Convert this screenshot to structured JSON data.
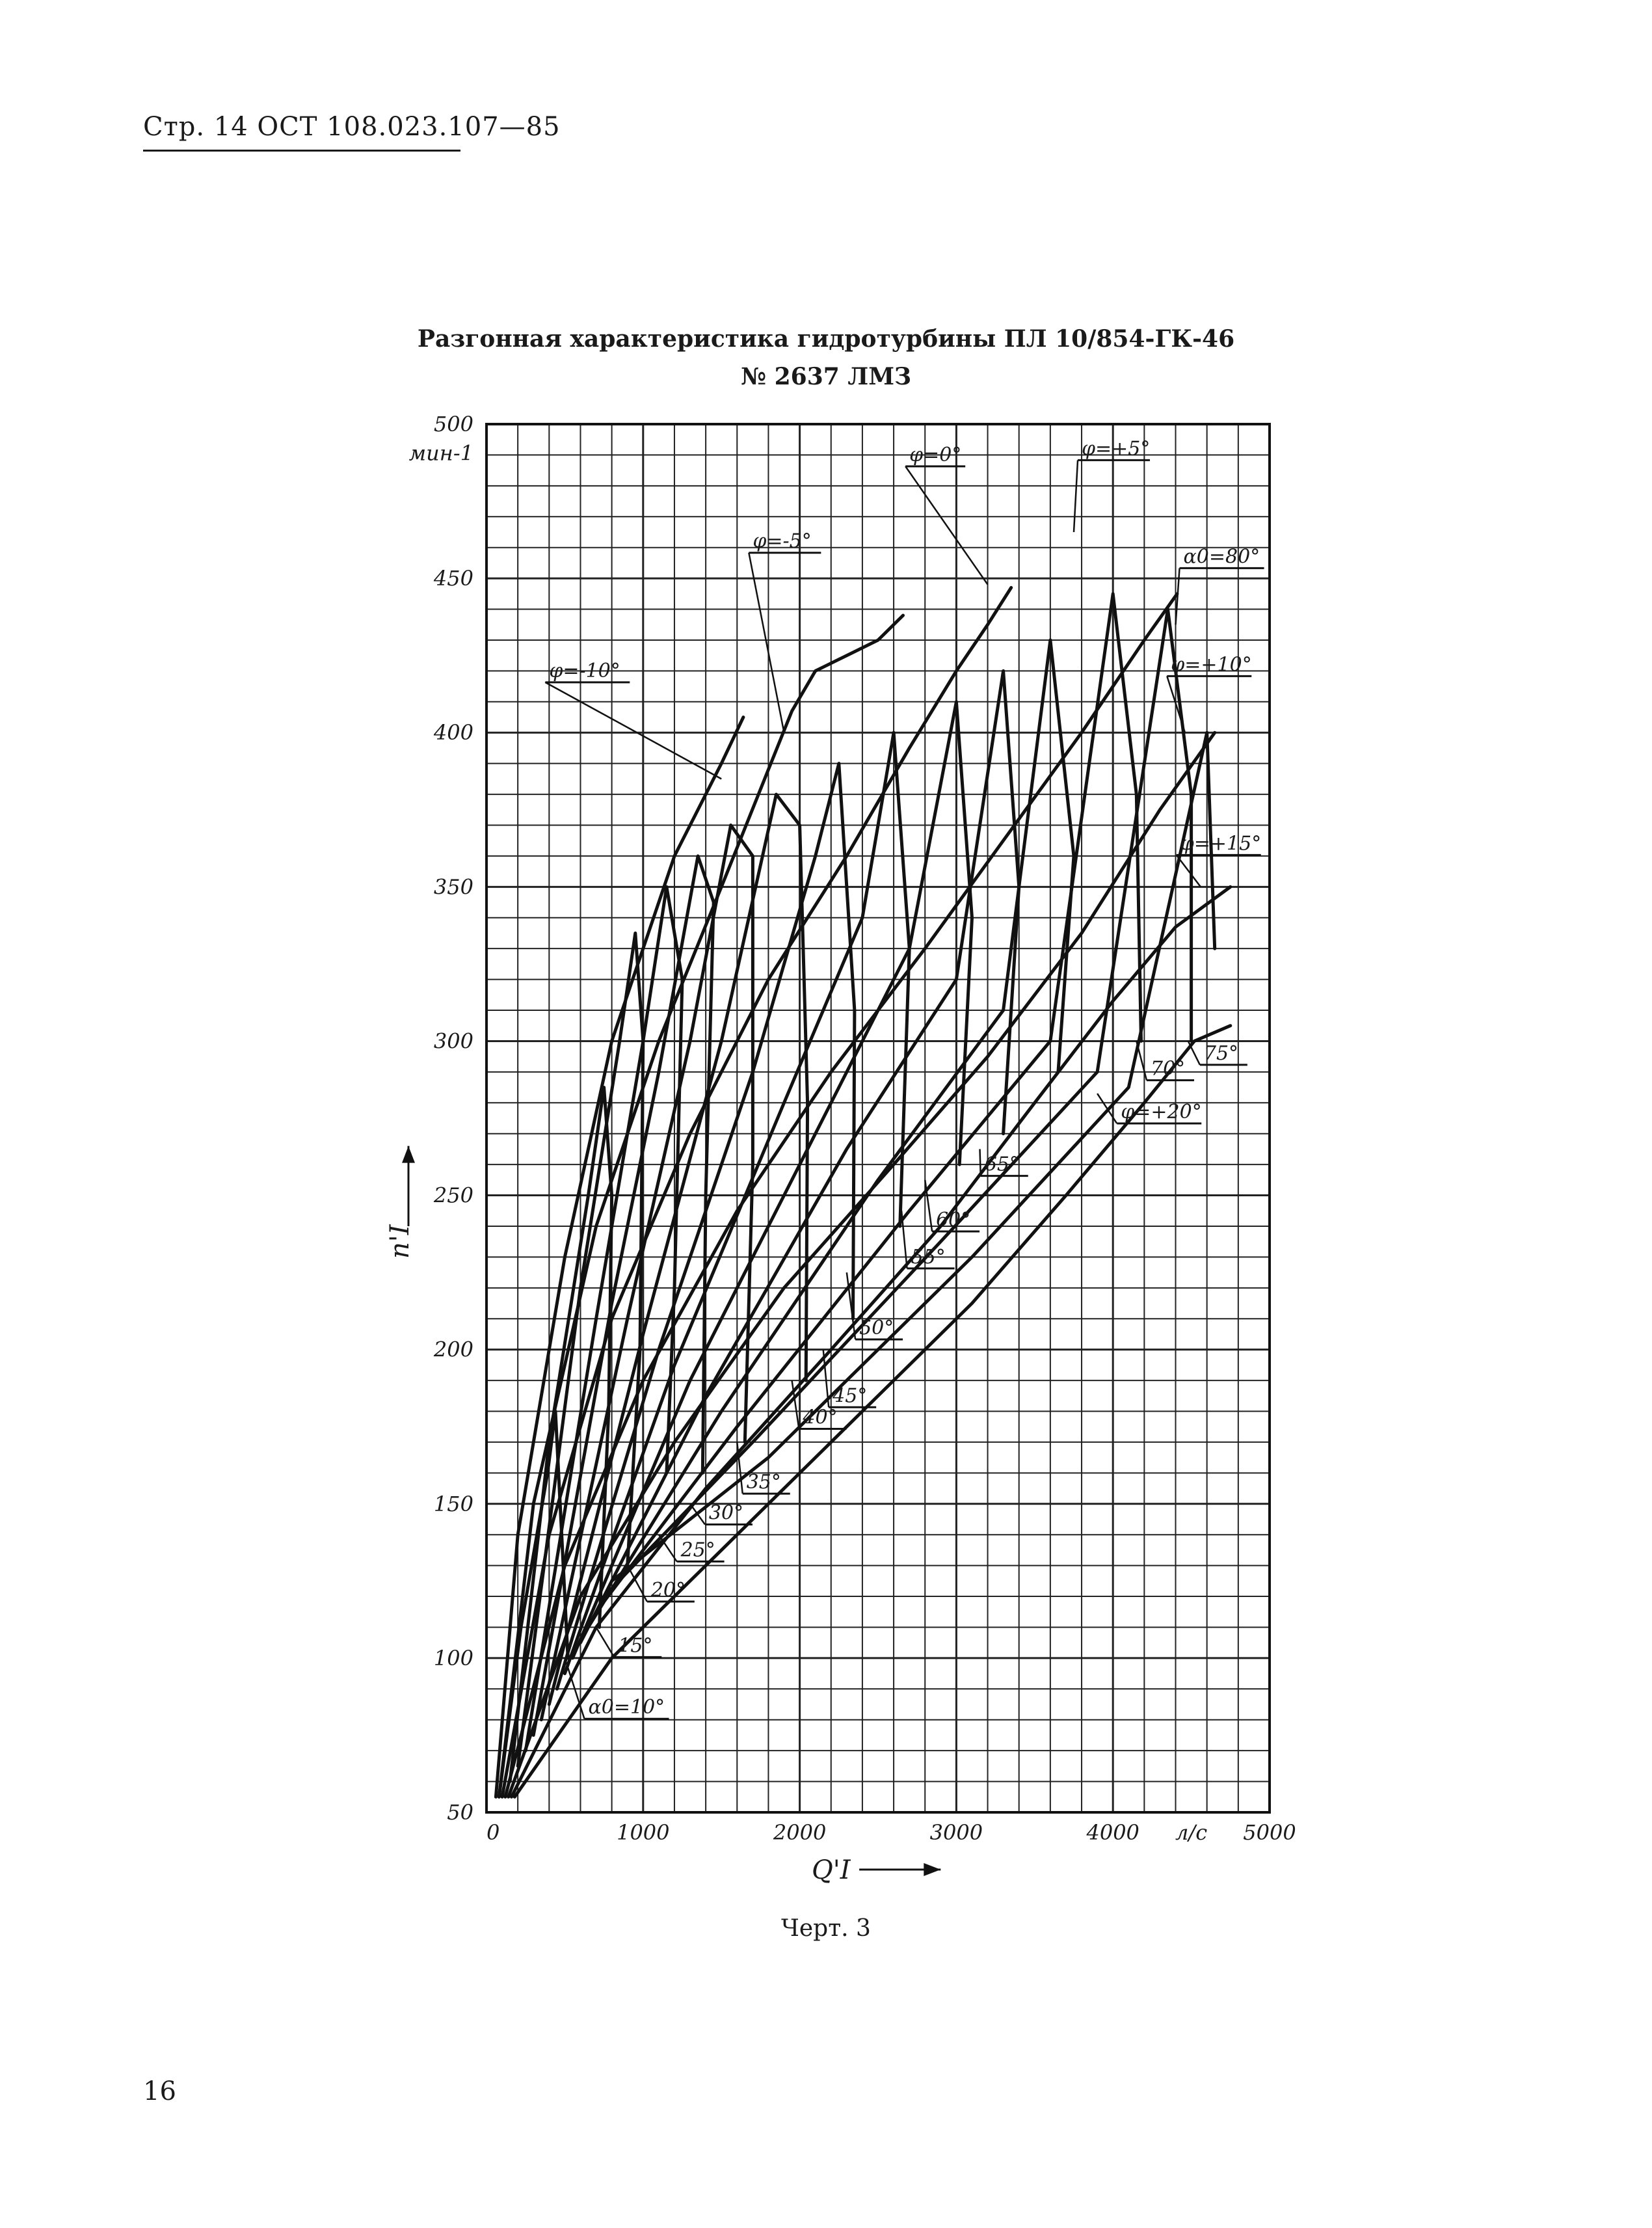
{
  "header": {
    "doc_ref": "Стр. 14 ОСТ 108.023.107—85"
  },
  "title": {
    "line1": "Разгонная характеристика гидротурбины ПЛ 10/854-ГК-46",
    "line2": "№ 2637 ЛМЗ"
  },
  "caption": "Черт. 3",
  "page_number": "16",
  "chart_data": {
    "type": "line",
    "title": "Разгонная характеристика гидротурбины ПЛ 10/854-ГК-46 № 2637 ЛМЗ",
    "xlabel": "Q'I",
    "x_unit": "л/с",
    "ylabel": "n'I",
    "y_unit": "мин-1",
    "xlim": [
      0,
      5000
    ],
    "ylim": [
      50,
      500
    ],
    "x_ticks": [
      "0",
      "1000",
      "2000",
      "3000",
      "4000",
      "5000"
    ],
    "y_ticks": [
      "50",
      "100",
      "150",
      "200",
      "250",
      "300",
      "350",
      "400",
      "450",
      "500"
    ],
    "grid": true,
    "phi_series": [
      {
        "name": "φ=-10°",
        "label_pos": [
          400,
          418
        ],
        "anchor": [
          1500,
          385
        ],
        "points": [
          [
            60,
            55
          ],
          [
            200,
            140
          ],
          [
            500,
            230
          ],
          [
            800,
            300
          ],
          [
            1200,
            360
          ],
          [
            1500,
            390
          ],
          [
            1640,
            405
          ]
        ]
      },
      {
        "name": "φ=-5°",
        "label_pos": [
          1700,
          460
        ],
        "anchor": [
          1900,
          400
        ],
        "points": [
          [
            80,
            55
          ],
          [
            300,
            150
          ],
          [
            700,
            240
          ],
          [
            1100,
            300
          ],
          [
            1500,
            350
          ],
          [
            1800,
            388
          ],
          [
            1950,
            407
          ],
          [
            2100,
            420
          ],
          [
            2300,
            425
          ],
          [
            2500,
            430
          ],
          [
            2660,
            438
          ]
        ]
      },
      {
        "name": "φ=0°",
        "label_pos": [
          2700,
          488
        ],
        "anchor": [
          3200,
          448
        ],
        "points": [
          [
            100,
            55
          ],
          [
            400,
            140
          ],
          [
            800,
            210
          ],
          [
            1300,
            270
          ],
          [
            1800,
            320
          ],
          [
            2300,
            360
          ],
          [
            2700,
            395
          ],
          [
            3000,
            420
          ],
          [
            3200,
            435
          ],
          [
            3350,
            447
          ]
        ]
      },
      {
        "name": "φ=+5°",
        "label_pos": [
          3800,
          490
        ],
        "anchor": [
          3750,
          465
        ],
        "points": [
          [
            120,
            55
          ],
          [
            500,
            130
          ],
          [
            1000,
            190
          ],
          [
            1600,
            245
          ],
          [
            2200,
            290
          ],
          [
            2800,
            330
          ],
          [
            3300,
            365
          ],
          [
            3800,
            400
          ],
          [
            4200,
            430
          ],
          [
            4410,
            445
          ]
        ]
      },
      {
        "name": "φ=+10°",
        "label_pos": [
          4370,
          420
        ],
        "anchor": [
          4460,
          400
        ],
        "points": [
          [
            140,
            55
          ],
          [
            600,
            120
          ],
          [
            1200,
            170
          ],
          [
            1900,
            220
          ],
          [
            2600,
            260
          ],
          [
            3200,
            295
          ],
          [
            3800,
            335
          ],
          [
            4300,
            375
          ],
          [
            4650,
            400
          ]
        ]
      },
      {
        "name": "φ=+15°",
        "label_pos": [
          4430,
          362
        ],
        "anchor": [
          4560,
          350
        ],
        "points": [
          [
            160,
            55
          ],
          [
            700,
            110
          ],
          [
            1400,
            155
          ],
          [
            2200,
            200
          ],
          [
            2900,
            240
          ],
          [
            3500,
            280
          ],
          [
            4000,
            313
          ],
          [
            4400,
            337
          ],
          [
            4750,
            350
          ]
        ]
      },
      {
        "name": "φ=+20°",
        "label_pos": [
          4050,
          275
        ],
        "anchor": [
          3900,
          283
        ],
        "points": [
          [
            180,
            55
          ],
          [
            800,
            100
          ],
          [
            1600,
            140
          ],
          [
            2400,
            180
          ],
          [
            3100,
            215
          ],
          [
            3700,
            250
          ],
          [
            4200,
            280
          ],
          [
            4520,
            300
          ],
          [
            4750,
            305
          ]
        ]
      }
    ],
    "alpha_series": [
      {
        "name": "α0=10°",
        "label_pos": [
          650,
          82
        ],
        "anchor": [
          500,
          100
        ],
        "points": [
          [
            80,
            55
          ],
          [
            220,
            110
          ],
          [
            390,
            160
          ],
          [
            440,
            180
          ],
          [
            500,
            120
          ],
          [
            520,
            100
          ]
        ]
      },
      {
        "name": "15°",
        "label_pos": [
          840,
          102
        ],
        "anchor": [
          700,
          110
        ],
        "points": [
          [
            150,
            60
          ],
          [
            400,
            170
          ],
          [
            650,
            250
          ],
          [
            750,
            285
          ],
          [
            800,
            250
          ],
          [
            780,
            180
          ],
          [
            720,
            110
          ]
        ]
      },
      {
        "name": "20°",
        "label_pos": [
          1050,
          120
        ],
        "anchor": [
          900,
          130
        ],
        "points": [
          [
            200,
            65
          ],
          [
            600,
            220
          ],
          [
            850,
            300
          ],
          [
            950,
            335
          ],
          [
            1000,
            300
          ],
          [
            980,
            200
          ],
          [
            900,
            130
          ]
        ]
      },
      {
        "name": "25°",
        "label_pos": [
          1240,
          133
        ],
        "anchor": [
          1100,
          140
        ],
        "points": [
          [
            250,
            70
          ],
          [
            700,
            210
          ],
          [
            1000,
            300
          ],
          [
            1150,
            350
          ],
          [
            1250,
            320
          ],
          [
            1200,
            220
          ],
          [
            1150,
            160
          ]
        ]
      },
      {
        "name": "30°",
        "label_pos": [
          1420,
          145
        ],
        "anchor": [
          1300,
          150
        ],
        "points": [
          [
            300,
            75
          ],
          [
            800,
            215
          ],
          [
            1100,
            290
          ],
          [
            1350,
            360
          ],
          [
            1450,
            345
          ],
          [
            1400,
            250
          ],
          [
            1380,
            160
          ]
        ]
      },
      {
        "name": "35°",
        "label_pos": [
          1660,
          155
        ],
        "anchor": [
          1600,
          170
        ],
        "points": [
          [
            350,
            80
          ],
          [
            900,
            210
          ],
          [
            1300,
            300
          ],
          [
            1560,
            370
          ],
          [
            1700,
            360
          ],
          [
            1700,
            260
          ],
          [
            1650,
            170
          ]
        ]
      },
      {
        "name": "40°",
        "label_pos": [
          2020,
          176
        ],
        "anchor": [
          1950,
          190
        ],
        "points": [
          [
            400,
            85
          ],
          [
            1000,
            205
          ],
          [
            1500,
            300
          ],
          [
            1850,
            380
          ],
          [
            2000,
            370
          ],
          [
            2050,
            280
          ],
          [
            2040,
            190
          ]
        ]
      },
      {
        "name": "45°",
        "label_pos": [
          2210,
          183
        ],
        "anchor": [
          2150,
          200
        ],
        "points": [
          [
            450,
            90
          ],
          [
            1100,
            200
          ],
          [
            1700,
            290
          ],
          [
            2100,
            360
          ],
          [
            2250,
            390
          ],
          [
            2350,
            310
          ],
          [
            2340,
            210
          ]
        ]
      },
      {
        "name": "50°",
        "label_pos": [
          2380,
          205
        ],
        "anchor": [
          2300,
          225
        ],
        "points": [
          [
            500,
            95
          ],
          [
            1200,
            195
          ],
          [
            1900,
            280
          ],
          [
            2400,
            340
          ],
          [
            2600,
            400
          ],
          [
            2700,
            330
          ],
          [
            2640,
            240
          ]
        ]
      },
      {
        "name": "55°",
        "label_pos": [
          2710,
          228
        ],
        "anchor": [
          2650,
          245
        ],
        "points": [
          [
            550,
            100
          ],
          [
            1300,
            190
          ],
          [
            2100,
            270
          ],
          [
            2700,
            330
          ],
          [
            3000,
            410
          ],
          [
            3100,
            340
          ],
          [
            3020,
            260
          ]
        ]
      },
      {
        "name": "60°",
        "label_pos": [
          2870,
          240
        ],
        "anchor": [
          2800,
          255
        ],
        "points": [
          [
            600,
            105
          ],
          [
            1400,
            185
          ],
          [
            2300,
            265
          ],
          [
            3000,
            320
          ],
          [
            3300,
            420
          ],
          [
            3400,
            350
          ],
          [
            3300,
            270
          ]
        ]
      },
      {
        "name": "65°",
        "label_pos": [
          3180,
          258
        ],
        "anchor": [
          3150,
          265
        ],
        "points": [
          [
            650,
            110
          ],
          [
            1500,
            180
          ],
          [
            2500,
            255
          ],
          [
            3300,
            310
          ],
          [
            3600,
            430
          ],
          [
            3750,
            360
          ],
          [
            3650,
            290
          ]
        ]
      },
      {
        "name": "70°",
        "label_pos": [
          4240,
          289
        ],
        "anchor": [
          4150,
          300
        ],
        "points": [
          [
            700,
            115
          ],
          [
            1600,
            175
          ],
          [
            2700,
            245
          ],
          [
            3600,
            300
          ],
          [
            4000,
            445
          ],
          [
            4150,
            380
          ],
          [
            4180,
            300
          ]
        ]
      },
      {
        "name": "75°",
        "label_pos": [
          4580,
          294
        ],
        "anchor": [
          4480,
          300
        ],
        "points": [
          [
            750,
            120
          ],
          [
            1700,
            170
          ],
          [
            2900,
            235
          ],
          [
            3900,
            290
          ],
          [
            4350,
            440
          ],
          [
            4500,
            380
          ],
          [
            4500,
            300
          ]
        ]
      },
      {
        "name": "α0=80°",
        "label_pos": [
          4450,
          455
        ],
        "anchor": [
          4400,
          435
        ],
        "points": [
          [
            800,
            125
          ],
          [
            1800,
            165
          ],
          [
            3100,
            230
          ],
          [
            4100,
            285
          ],
          [
            4600,
            400
          ],
          [
            4650,
            330
          ]
        ]
      }
    ]
  }
}
